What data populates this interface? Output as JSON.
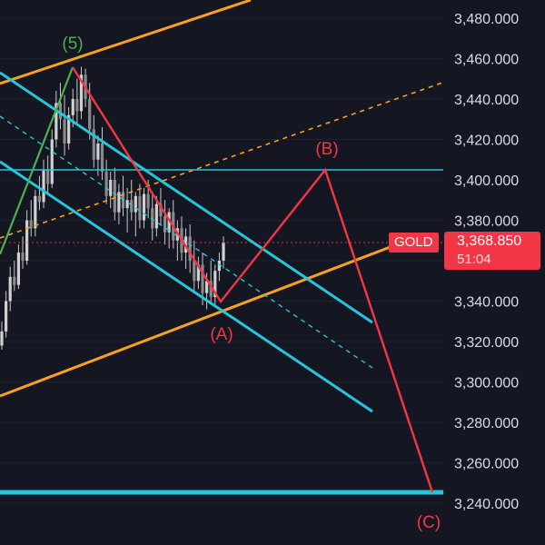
{
  "chart_data": {
    "type": "candlestick",
    "symbol": "GOLD",
    "last_price": "3,368.850",
    "countdown": "51:04",
    "y_axis": {
      "ticks": [
        "3,480.000",
        "3,460.000",
        "3,440.000",
        "3,420.000",
        "3,400.000",
        "3,380.000",
        "3,360.000",
        "3,340.000",
        "3,320.000",
        "3,300.000",
        "3,280.000",
        "3,260.000",
        "3,240.000"
      ],
      "range": [
        3232,
        3488
      ]
    },
    "wave_labels": [
      {
        "text": "(5)",
        "price": 3460,
        "color": "#4caf50"
      },
      {
        "text": "(A)",
        "price": 3336,
        "color": "#f23645"
      },
      {
        "text": "(B)",
        "price": 3404,
        "color": "#f23645"
      },
      {
        "text": "(C)",
        "price": 3248,
        "color": "#f23645"
      }
    ],
    "horizontal_levels": [
      {
        "price": 3404,
        "color": "#26c6da"
      },
      {
        "price": 3248,
        "color": "#26c6da"
      }
    ],
    "candles": [
      [
        3318,
        3330,
        3316,
        3325
      ],
      [
        3325,
        3345,
        3322,
        3340
      ],
      [
        3340,
        3357,
        3335,
        3352
      ],
      [
        3352,
        3360,
        3345,
        3348
      ],
      [
        3348,
        3368,
        3346,
        3364
      ],
      [
        3364,
        3372,
        3356,
        3360
      ],
      [
        3360,
        3385,
        3358,
        3380
      ],
      [
        3380,
        3390,
        3372,
        3376
      ],
      [
        3376,
        3395,
        3372,
        3392
      ],
      [
        3392,
        3402,
        3385,
        3389
      ],
      [
        3389,
        3410,
        3386,
        3405
      ],
      [
        3405,
        3412,
        3393,
        3398
      ],
      [
        3398,
        3425,
        3396,
        3420
      ],
      [
        3420,
        3444,
        3416,
        3438
      ],
      [
        3438,
        3448,
        3425,
        3430
      ],
      [
        3430,
        3442,
        3412,
        3418
      ],
      [
        3418,
        3436,
        3415,
        3432
      ],
      [
        3432,
        3445,
        3426,
        3440
      ],
      [
        3440,
        3450,
        3428,
        3434
      ],
      [
        3434,
        3456,
        3430,
        3452
      ],
      [
        3452,
        3455,
        3436,
        3440
      ],
      [
        3440,
        3448,
        3420,
        3425
      ],
      [
        3425,
        3432,
        3406,
        3410
      ],
      [
        3410,
        3422,
        3402,
        3418
      ],
      [
        3418,
        3426,
        3400,
        3404
      ],
      [
        3404,
        3410,
        3388,
        3392
      ],
      [
        3392,
        3404,
        3386,
        3400
      ],
      [
        3400,
        3406,
        3380,
        3384
      ],
      [
        3384,
        3398,
        3378,
        3394
      ],
      [
        3394,
        3402,
        3382,
        3386
      ],
      [
        3386,
        3396,
        3374,
        3390
      ],
      [
        3390,
        3400,
        3380,
        3384
      ],
      [
        3384,
        3394,
        3372,
        3392
      ],
      [
        3392,
        3398,
        3376,
        3380
      ],
      [
        3380,
        3396,
        3376,
        3393
      ],
      [
        3393,
        3400,
        3381,
        3386
      ],
      [
        3386,
        3394,
        3370,
        3376
      ],
      [
        3376,
        3392,
        3372,
        3388
      ],
      [
        3388,
        3396,
        3378,
        3382
      ],
      [
        3382,
        3390,
        3368,
        3374
      ],
      [
        3374,
        3386,
        3366,
        3384
      ],
      [
        3384,
        3390,
        3366,
        3370
      ],
      [
        3370,
        3380,
        3360,
        3376
      ],
      [
        3376,
        3382,
        3360,
        3364
      ],
      [
        3364,
        3376,
        3356,
        3372
      ],
      [
        3372,
        3378,
        3354,
        3360
      ],
      [
        3360,
        3370,
        3344,
        3350
      ],
      [
        3350,
        3362,
        3346,
        3358
      ],
      [
        3358,
        3364,
        3338,
        3344
      ],
      [
        3344,
        3354,
        3336,
        3350
      ],
      [
        3350,
        3360,
        3339,
        3342
      ],
      [
        3342,
        3358,
        3338,
        3355
      ],
      [
        3355,
        3364,
        3350,
        3360
      ],
      [
        3360,
        3372,
        3356,
        3369
      ]
    ]
  }
}
